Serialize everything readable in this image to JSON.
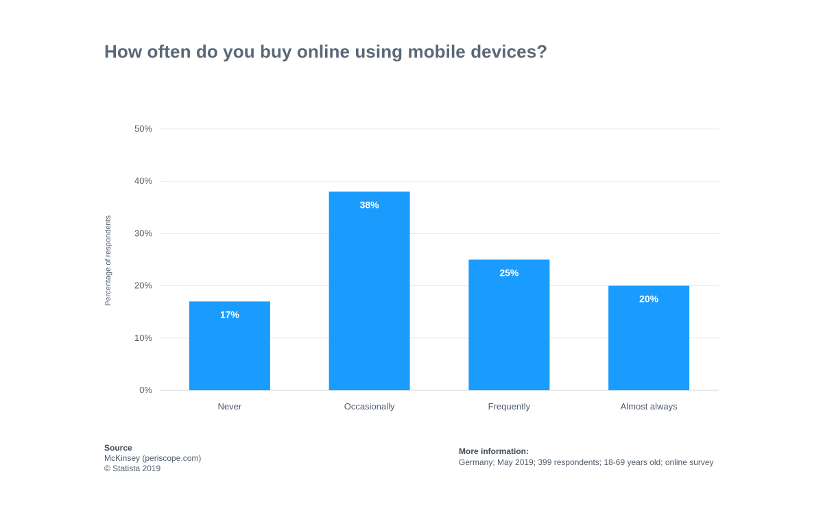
{
  "chart_data": {
    "type": "bar",
    "title": "How often do you buy online using mobile devices?",
    "categories": [
      "Never",
      "Occasionally",
      "Frequently",
      "Almost always"
    ],
    "values": [
      17,
      38,
      25,
      20
    ],
    "value_labels": [
      "17%",
      "38%",
      "25%",
      "20%"
    ],
    "ylabel": "Percentage of respondents",
    "xlabel": "",
    "ylim": [
      0,
      50
    ],
    "yticks": [
      0,
      10,
      20,
      30,
      40,
      50
    ],
    "ytick_labels": [
      "0%",
      "10%",
      "20%",
      "30%",
      "40%",
      "50%"
    ],
    "grid": true,
    "bar_color": "#1a9cff"
  },
  "footer": {
    "source_heading": "Source",
    "source_line1": "McKinsey (periscope.com)",
    "source_line2": "© Statista 2019",
    "info_heading": "More information:",
    "info_text": "Germany; May 2019; 399 respondents; 18-69 years old; online survey"
  }
}
